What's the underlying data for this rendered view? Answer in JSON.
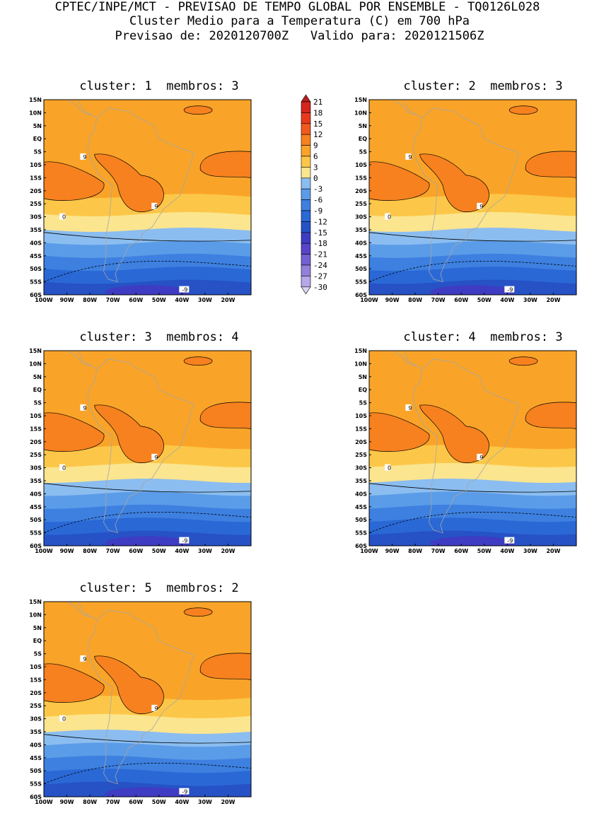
{
  "header": {
    "line1": "CPTEC/INPE/MCT - PREVISAO DE TEMPO GLOBAL POR ENSEMBLE - TQ0126L028",
    "line2": "Cluster Medio para a Temperatura (C) em 700 hPa",
    "line3": "Previsao de: 2020120700Z   Valido para: 2020121506Z"
  },
  "panels": [
    {
      "title": "cluster: 1  membros: 3"
    },
    {
      "title": "cluster: 2  membros: 3"
    },
    {
      "title": "cluster: 3  membros: 4"
    },
    {
      "title": "cluster: 4  membros: 3"
    },
    {
      "title": "cluster: 5  membros: 2"
    }
  ],
  "map": {
    "lat_labels": [
      "15N",
      "10N",
      "5N",
      "EQ",
      "5S",
      "10S",
      "15S",
      "20S",
      "25S",
      "30S",
      "35S",
      "40S",
      "45S",
      "50S",
      "55S",
      "60S"
    ],
    "lon_labels": [
      "100W",
      "90W",
      "80W",
      "70W",
      "60W",
      "50W",
      "40W",
      "30W",
      "20W"
    ],
    "contour_labels": [
      "9",
      "0",
      "-9"
    ]
  },
  "colorbar": {
    "levels": [
      "21",
      "18",
      "15",
      "12",
      "9",
      "6",
      "3",
      "0",
      "-3",
      "-6",
      "-9",
      "-12",
      "-15",
      "-18",
      "-21",
      "-24",
      "-27",
      "-30"
    ],
    "colors": [
      "#b81e1e",
      "#d4261c",
      "#e8391b",
      "#f05a1c",
      "#f7811f",
      "#f9a428",
      "#fcc748",
      "#fbe58f",
      "#8bbdf0",
      "#5b9ce8",
      "#3d80e0",
      "#2a68d6",
      "#2652c6",
      "#3e3cc2",
      "#5844c8",
      "#7360d2",
      "#9380dc",
      "#b7a6e8",
      "#ddd4f4"
    ]
  }
}
